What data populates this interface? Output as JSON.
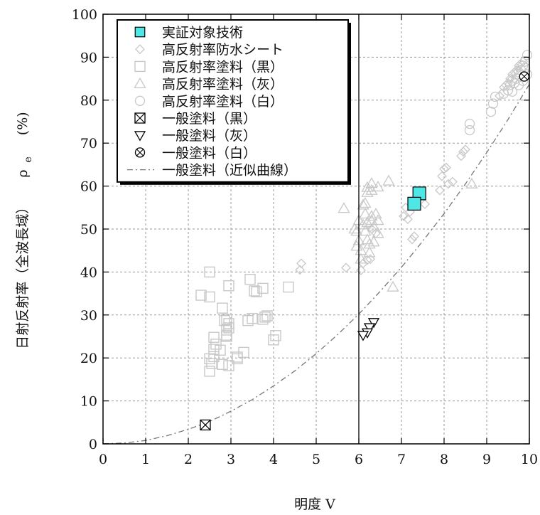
{
  "chart_data": {
    "type": "scatter",
    "xlabel": "明度 V",
    "ylabel": "日射反射率（全波長域）",
    "ylabel_symbol": "ρ",
    "ylabel_subscript": "e",
    "ylabel_unit": "(%)",
    "xlim": [
      0,
      10
    ],
    "ylim": [
      0,
      100
    ],
    "x_ticks": [
      0,
      1,
      2,
      3,
      4,
      5,
      6,
      7,
      8,
      9,
      10
    ],
    "y_ticks": [
      0,
      10,
      20,
      30,
      40,
      50,
      60,
      70,
      80,
      90,
      100
    ],
    "grid": true,
    "vertical_reference_line_x": 6,
    "legend_position": "top-left",
    "colors": {
      "target": "#4fe6e6",
      "gray": "#c8c8c8",
      "black": "#000000",
      "curve": "#777777"
    },
    "series": [
      {
        "name": "実証対象技術",
        "marker": "filled-square",
        "points": [
          [
            7.42,
            58.3
          ],
          [
            7.3,
            55.9
          ]
        ]
      },
      {
        "name": "高反射率防水シート",
        "marker": "diamond",
        "points": [
          [
            4.65,
            42
          ],
          [
            4.62,
            40.5
          ],
          [
            5.7,
            41
          ],
          [
            6.05,
            40.4
          ],
          [
            6.1,
            42
          ],
          [
            6.2,
            42.8
          ],
          [
            6.27,
            43
          ],
          [
            6.3,
            50
          ],
          [
            6.4,
            49
          ],
          [
            7.05,
            53
          ],
          [
            7.1,
            55
          ],
          [
            7.15,
            52.3
          ],
          [
            7.2,
            54
          ],
          [
            7.3,
            48.3
          ],
          [
            7.25,
            47.6
          ],
          [
            7.55,
            55.8
          ],
          [
            7.9,
            59
          ],
          [
            7.95,
            62.3
          ],
          [
            8.0,
            64
          ],
          [
            8.05,
            64.3
          ],
          [
            8.1,
            60.5
          ],
          [
            8.2,
            61
          ],
          [
            8.4,
            67
          ],
          [
            8.45,
            68
          ],
          [
            8.5,
            68.5
          ],
          [
            9.3,
            81
          ],
          [
            9.4,
            83
          ],
          [
            9.45,
            83.5
          ],
          [
            9.5,
            84
          ],
          [
            9.55,
            85
          ],
          [
            9.6,
            86
          ],
          [
            9.65,
            86.5
          ],
          [
            9.7,
            87
          ],
          [
            9.75,
            88
          ],
          [
            9.8,
            88.5
          ],
          [
            9.85,
            89
          ]
        ]
      },
      {
        "name": "高反射率塗料（黒）",
        "marker": "open-square",
        "points": [
          [
            2.5,
            40
          ],
          [
            2.3,
            34.6
          ],
          [
            2.5,
            34.2
          ],
          [
            2.8,
            31.6
          ],
          [
            2.95,
            36.8
          ],
          [
            2.85,
            28.7
          ],
          [
            2.9,
            29
          ],
          [
            2.95,
            27
          ],
          [
            2.9,
            26.5
          ],
          [
            2.95,
            28
          ],
          [
            2.9,
            25
          ],
          [
            2.9,
            25.3
          ],
          [
            2.6,
            24.8
          ],
          [
            2.65,
            23.2
          ],
          [
            2.6,
            22
          ],
          [
            2.75,
            21.8
          ],
          [
            2.6,
            20.3
          ],
          [
            2.5,
            19.8
          ],
          [
            2.55,
            18.7
          ],
          [
            2.8,
            18.5
          ],
          [
            2.5,
            16.9
          ],
          [
            2.95,
            18.2
          ],
          [
            3.15,
            19.8
          ],
          [
            3.15,
            20.2
          ],
          [
            3.3,
            21.3
          ],
          [
            3.4,
            28.7
          ],
          [
            3.5,
            29.2
          ],
          [
            3.45,
            38.3
          ],
          [
            3.55,
            35.6
          ],
          [
            3.6,
            35.4
          ],
          [
            3.75,
            36.2
          ],
          [
            3.75,
            29
          ],
          [
            3.8,
            29.5
          ],
          [
            3.85,
            29.8
          ],
          [
            4.0,
            24.2
          ],
          [
            4.05,
            25.2
          ],
          [
            4.35,
            36.5
          ]
        ]
      },
      {
        "name": "高反射率塗料（灰）",
        "marker": "triangle-up",
        "points": [
          [
            5.65,
            54.8
          ],
          [
            5.9,
            50
          ],
          [
            5.95,
            49.5
          ],
          [
            5.95,
            46
          ],
          [
            6.0,
            52
          ],
          [
            6.0,
            47.3
          ],
          [
            6.05,
            45
          ],
          [
            6.05,
            43
          ],
          [
            6.1,
            55.6
          ],
          [
            6.1,
            51
          ],
          [
            6.15,
            56
          ],
          [
            6.15,
            53.5
          ],
          [
            6.15,
            49.5
          ],
          [
            6.2,
            58.5
          ],
          [
            6.2,
            51.5
          ],
          [
            6.2,
            47.5
          ],
          [
            6.25,
            46.5
          ],
          [
            6.25,
            44.5
          ],
          [
            6.3,
            59
          ],
          [
            6.3,
            53
          ],
          [
            6.3,
            52
          ],
          [
            6.35,
            50.5
          ],
          [
            6.35,
            47
          ],
          [
            6.4,
            53.5
          ],
          [
            6.45,
            52
          ],
          [
            6.45,
            49
          ],
          [
            6.2,
            59.7
          ],
          [
            6.3,
            60.6
          ],
          [
            6.45,
            59.8
          ],
          [
            6.7,
            61.2
          ],
          [
            6.8,
            36.5
          ],
          [
            8.65,
            60.5
          ]
        ]
      },
      {
        "name": "高反射率塗料（白）",
        "marker": "circle",
        "points": [
          [
            8.6,
            73
          ],
          [
            8.6,
            74.5
          ],
          [
            9.1,
            77.3
          ],
          [
            9.15,
            79.2
          ],
          [
            9.2,
            80.8
          ],
          [
            9.4,
            81.5
          ],
          [
            9.5,
            82.3
          ],
          [
            9.55,
            83.5
          ],
          [
            9.6,
            82
          ],
          [
            9.6,
            84.5
          ],
          [
            9.65,
            84
          ],
          [
            9.7,
            85
          ],
          [
            9.7,
            86
          ],
          [
            9.75,
            86.5
          ],
          [
            9.8,
            87
          ],
          [
            9.85,
            88
          ],
          [
            9.9,
            89
          ],
          [
            9.9,
            87.5
          ],
          [
            9.95,
            90.5
          ],
          [
            9.95,
            86
          ],
          [
            9.85,
            84.5
          ],
          [
            9.75,
            83.5
          ]
        ]
      },
      {
        "name": "一般塗料（黒）",
        "marker": "boxed-x",
        "points": [
          [
            2.4,
            4.4
          ]
        ]
      },
      {
        "name": "一般塗料（灰）",
        "marker": "triangle-down",
        "points": [
          [
            6.35,
            28.3
          ],
          [
            6.25,
            27.1
          ],
          [
            6.2,
            25.9
          ],
          [
            6.1,
            25.3
          ]
        ]
      },
      {
        "name": "一般塗料（白）",
        "marker": "circled-x",
        "points": [
          [
            9.88,
            85.5
          ]
        ]
      },
      {
        "name": "一般塗料（近似曲線）",
        "marker": "dash-dot-line",
        "points": [
          [
            0,
            0
          ],
          [
            0.5,
            0.2
          ],
          [
            1,
            0.8
          ],
          [
            1.5,
            1.9
          ],
          [
            2,
            3.4
          ],
          [
            2.5,
            5.2
          ],
          [
            3,
            7.6
          ],
          [
            3.5,
            10.3
          ],
          [
            4,
            13.5
          ],
          [
            4.5,
            17.0
          ],
          [
            5,
            21.0
          ],
          [
            5.5,
            25.4
          ],
          [
            6,
            30.2
          ],
          [
            6.5,
            35.5
          ],
          [
            7,
            41.1
          ],
          [
            7.5,
            47.2
          ],
          [
            8,
            53.6
          ],
          [
            8.5,
            60.5
          ],
          [
            9,
            67.8
          ],
          [
            9.5,
            75.5
          ],
          [
            10,
            83.7
          ]
        ]
      }
    ]
  }
}
